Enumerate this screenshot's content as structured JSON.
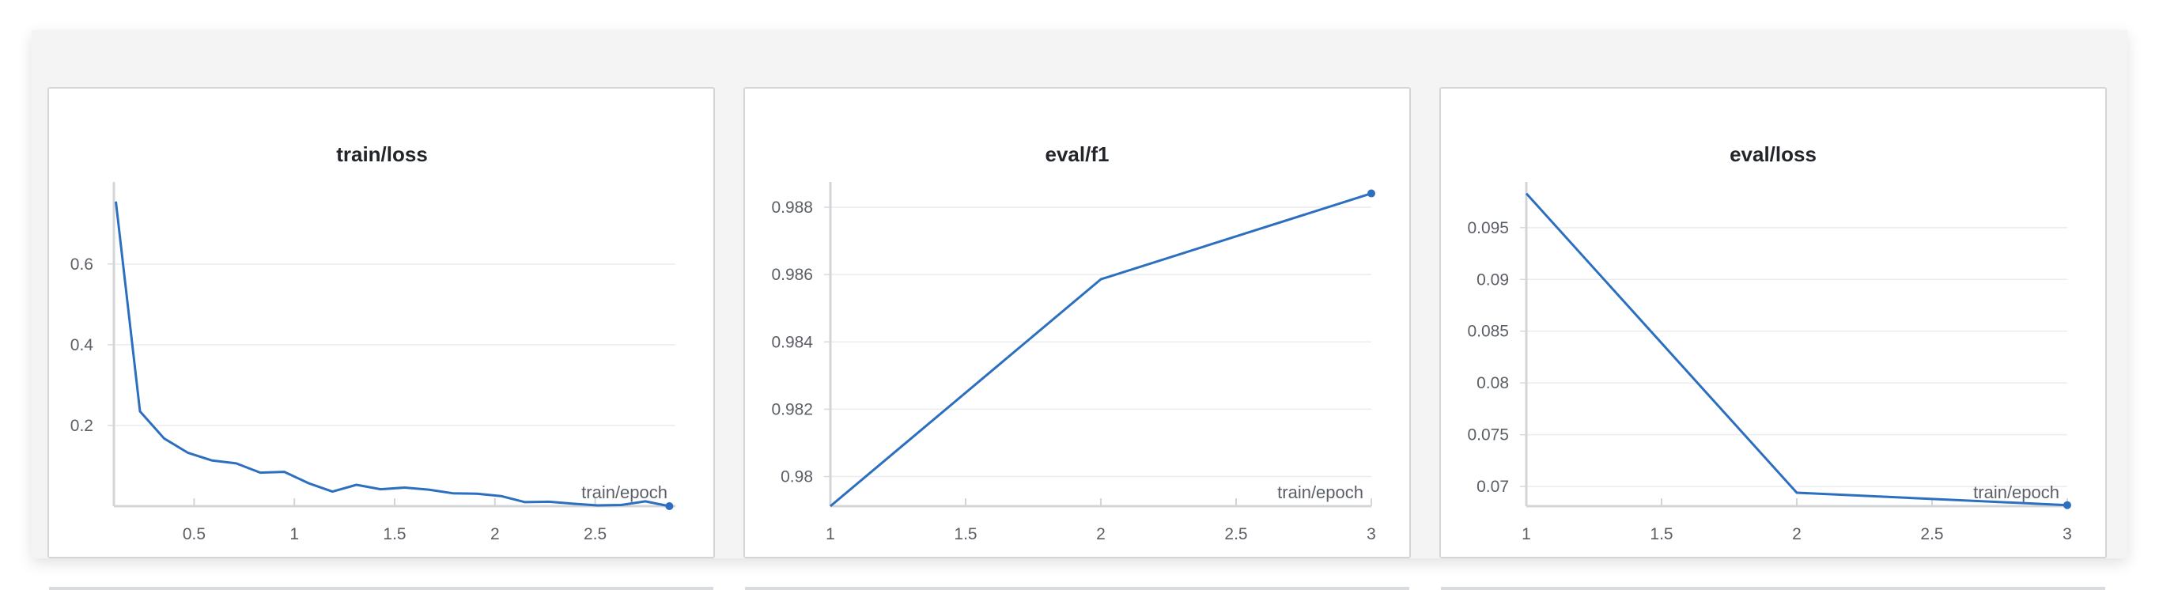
{
  "chart_data": [
    {
      "type": "line",
      "title": "train/loss",
      "xlabel": "train/epoch",
      "ylabel": "",
      "xlim": [
        0.1,
        2.9
      ],
      "ylim": [
        0.0,
        0.78
      ],
      "xticks": [
        0.5,
        1,
        1.5,
        2,
        2.5
      ],
      "xtick_labels": [
        "0.5",
        "1",
        "1.5",
        "2",
        "2.5"
      ],
      "yticks": [
        0.2,
        0.4,
        0.6
      ],
      "ytick_labels": [
        "0.2",
        "0.4",
        "0.6"
      ],
      "series": [
        {
          "color": "#2d6fbf",
          "x": [
            0.11,
            0.23,
            0.35,
            0.47,
            0.59,
            0.71,
            0.83,
            0.95,
            1.07,
            1.19,
            1.31,
            1.43,
            1.55,
            1.67,
            1.79,
            1.91,
            2.03,
            2.15,
            2.27,
            2.39,
            2.51,
            2.63,
            2.75,
            2.87
          ],
          "values": [
            0.755,
            0.235,
            0.168,
            0.132,
            0.113,
            0.106,
            0.083,
            0.085,
            0.057,
            0.036,
            0.053,
            0.042,
            0.046,
            0.041,
            0.032,
            0.031,
            0.025,
            0.01,
            0.011,
            0.006,
            0.002,
            0.003,
            0.012,
            0.0
          ]
        }
      ]
    },
    {
      "type": "line",
      "title": "eval/f1",
      "xlabel": "train/epoch",
      "ylabel": "",
      "xlim": [
        1,
        3
      ],
      "ylim": [
        0.97912,
        0.98847
      ],
      "xticks": [
        1,
        1.5,
        2,
        2.5,
        3
      ],
      "xtick_labels": [
        "1",
        "1.5",
        "2",
        "2.5",
        "3"
      ],
      "yticks": [
        0.98,
        0.982,
        0.984,
        0.986,
        0.988
      ],
      "ytick_labels": [
        "0.98",
        "0.982",
        "0.984",
        "0.986",
        "0.988"
      ],
      "series": [
        {
          "color": "#2d6fbf",
          "x": [
            1,
            2,
            3
          ],
          "values": [
            0.97912,
            0.98586,
            0.98841
          ]
        }
      ]
    },
    {
      "type": "line",
      "title": "eval/loss",
      "xlabel": "train/epoch",
      "ylabel": "",
      "xlim": [
        1,
        3
      ],
      "ylim": [
        0.0681,
        0.0985
      ],
      "xticks": [
        1,
        1.5,
        2,
        2.5,
        3
      ],
      "xtick_labels": [
        "1",
        "1.5",
        "2",
        "2.5",
        "3"
      ],
      "yticks": [
        0.07,
        0.075,
        0.08,
        0.085,
        0.09,
        0.095
      ],
      "ytick_labels": [
        "0.07",
        "0.075",
        "0.08",
        "0.085",
        "0.09",
        "0.095"
      ],
      "series": [
        {
          "color": "#2d6fbf",
          "x": [
            1,
            2,
            3
          ],
          "values": [
            0.0983,
            0.0694,
            0.0682
          ]
        }
      ]
    }
  ]
}
